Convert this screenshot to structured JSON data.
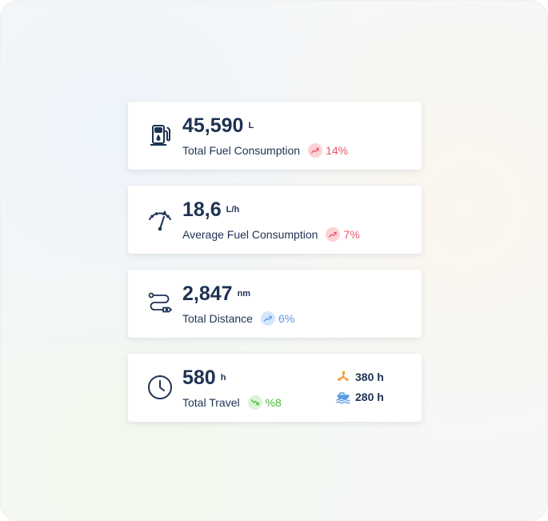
{
  "cards": [
    {
      "value": "45,590",
      "unit": "L",
      "label": "Total Fuel Consumption",
      "trend": "up",
      "change": "14%",
      "color": "red",
      "icon": "fuel-pump-icon"
    },
    {
      "value": "18,6",
      "unit": "L/h",
      "label": "Average Fuel Consumption",
      "trend": "up",
      "change": "7%",
      "color": "red",
      "icon": "fuel-gauge-icon"
    },
    {
      "value": "2,847",
      "unit": "nm",
      "label": "Total Distance",
      "trend": "up",
      "change": "6%",
      "color": "blue",
      "icon": "route-icon"
    },
    {
      "value": "580",
      "unit": "h",
      "label": "Total Travel",
      "trend": "down",
      "change": "%8",
      "color": "green",
      "icon": "clock-icon",
      "breakdown": [
        {
          "icon": "propeller-icon",
          "value": "380 h",
          "color": "#f2a03a"
        },
        {
          "icon": "ship-icon",
          "value": "280 h",
          "color": "#5b9be6"
        }
      ]
    }
  ]
}
